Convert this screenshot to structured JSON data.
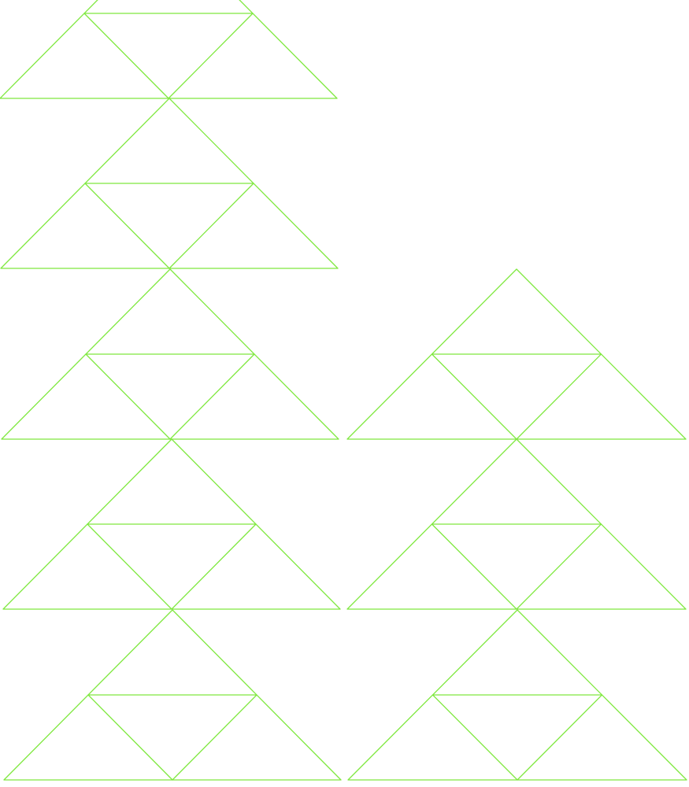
{
  "diagram": {
    "description_visible_text": "",
    "stroke_color": "#7fe83f",
    "background_color": "#ffffff",
    "columns": [
      {
        "name": "left-column",
        "tile_count": 5,
        "top_clipped": true
      },
      {
        "name": "right-column",
        "tile_count": 3,
        "top_clipped": false
      }
    ],
    "tile_type": "triangle-subdivided-into-4"
  }
}
